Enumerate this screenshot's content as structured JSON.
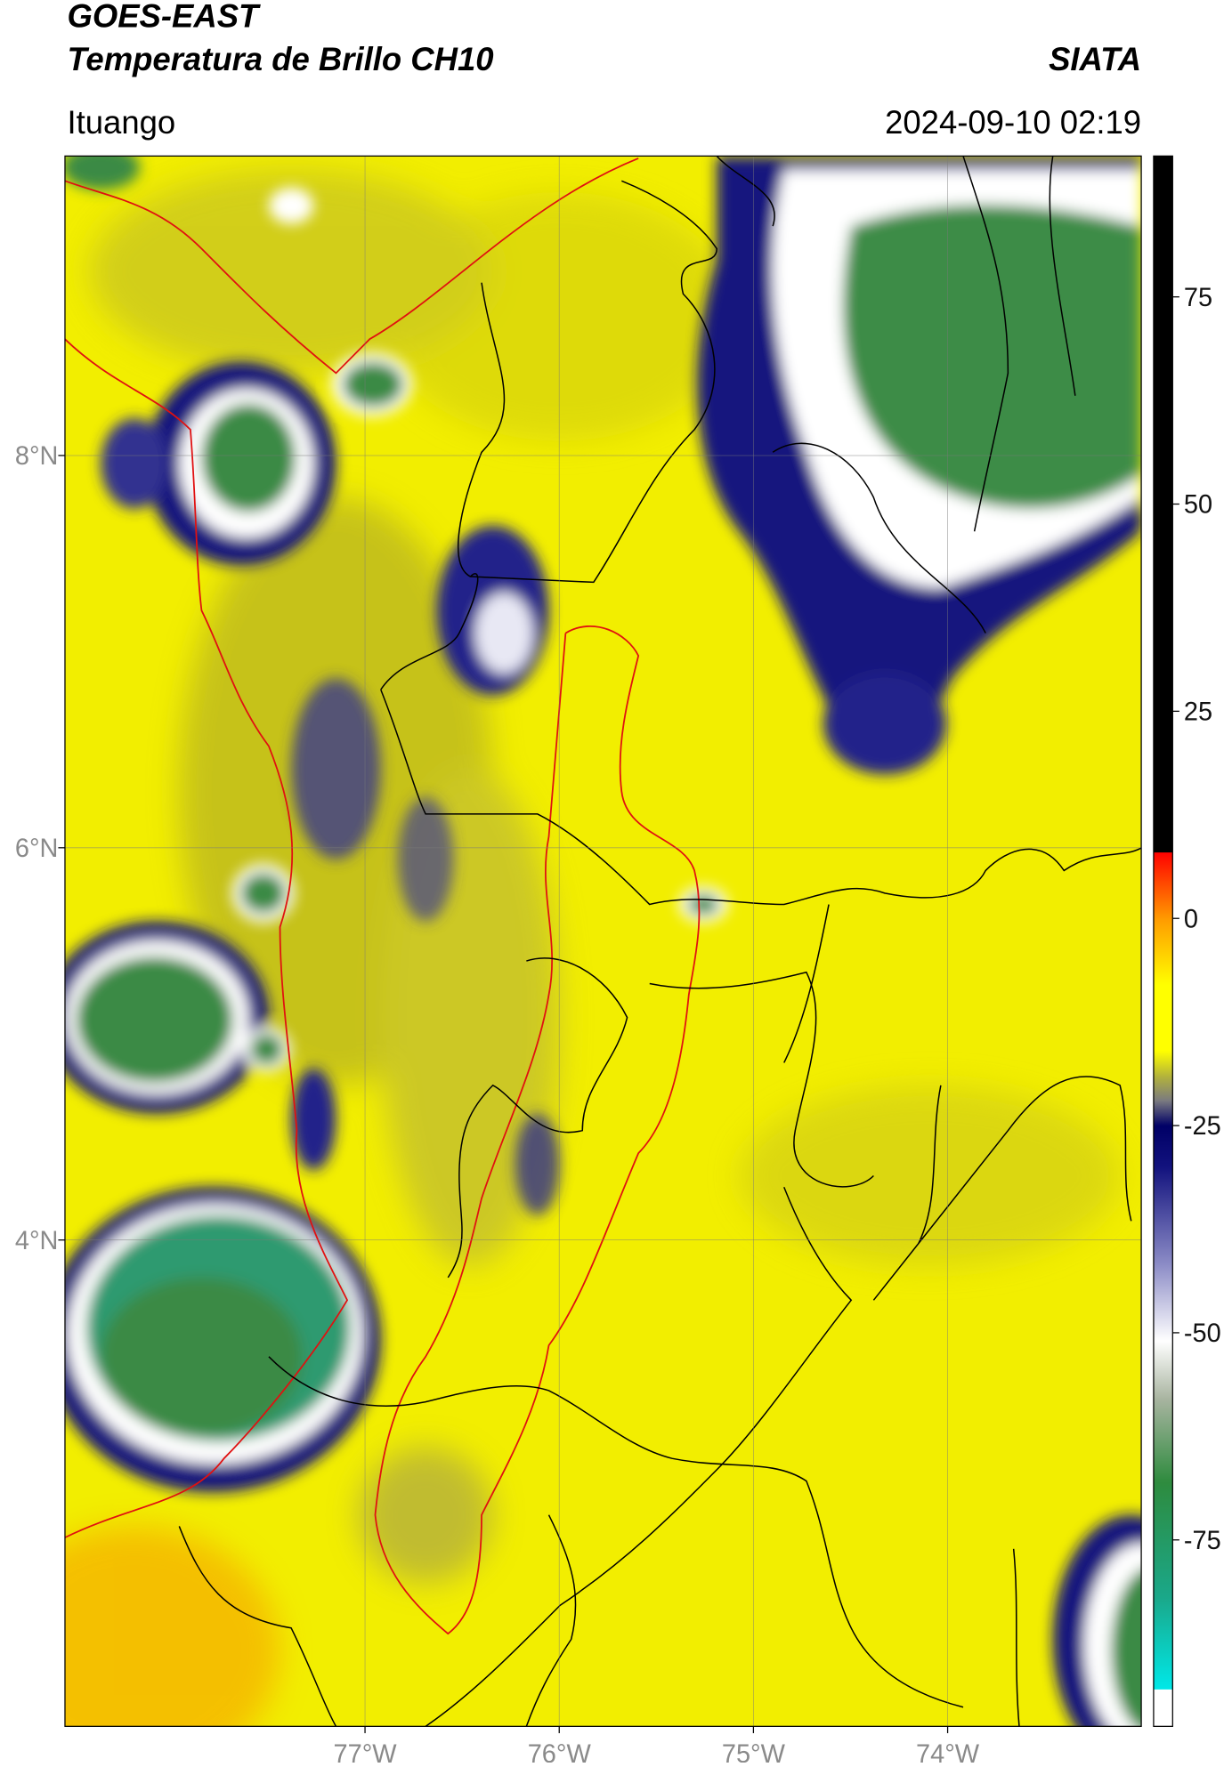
{
  "chart_data": {
    "type": "map",
    "title": "GOES-EAST",
    "subtitle": "Temperatura de Brillo CH10",
    "source": "SIATA",
    "location": "Ituango",
    "datetime": "2024-09-10 02:19",
    "xlim": [
      -78.545,
      -73.003
    ],
    "ylim": [
      1.52,
      9.527
    ],
    "xticks": [
      {
        "value": -77,
        "label": "77°W"
      },
      {
        "value": -76,
        "label": "76°W"
      },
      {
        "value": -75,
        "label": "75°W"
      },
      {
        "value": -74,
        "label": "74°W"
      }
    ],
    "yticks": [
      {
        "value": 4,
        "label": "4°N"
      },
      {
        "value": 6,
        "label": "6°N"
      },
      {
        "value": 8,
        "label": "8°N"
      }
    ],
    "grid": true,
    "colorbar": {
      "lim": [
        -97.5,
        92
      ],
      "ticks": [
        -75,
        -50,
        -25,
        0,
        25,
        50,
        75
      ],
      "colorscale": [
        [
          -97.5,
          "#ffffff"
        ],
        [
          -93,
          "#ffffff"
        ],
        [
          -93,
          "#00e8e8"
        ],
        [
          -82,
          "#1aa88a"
        ],
        [
          -68,
          "#2e8b3e"
        ],
        [
          -58,
          "#a8b4a0"
        ],
        [
          -51,
          "#ffffff"
        ],
        [
          -42,
          "#8f8fc8"
        ],
        [
          -30,
          "#12127e"
        ],
        [
          -25,
          "#000066"
        ],
        [
          -22,
          "#7a7a80"
        ],
        [
          -19,
          "#b4b43a"
        ],
        [
          -16,
          "#ffff00"
        ],
        [
          -8,
          "#ffff00"
        ],
        [
          0,
          "#ff9a00"
        ],
        [
          8,
          "#ff0000"
        ],
        [
          8,
          "#000000"
        ],
        [
          92,
          "#000000"
        ]
      ]
    }
  }
}
